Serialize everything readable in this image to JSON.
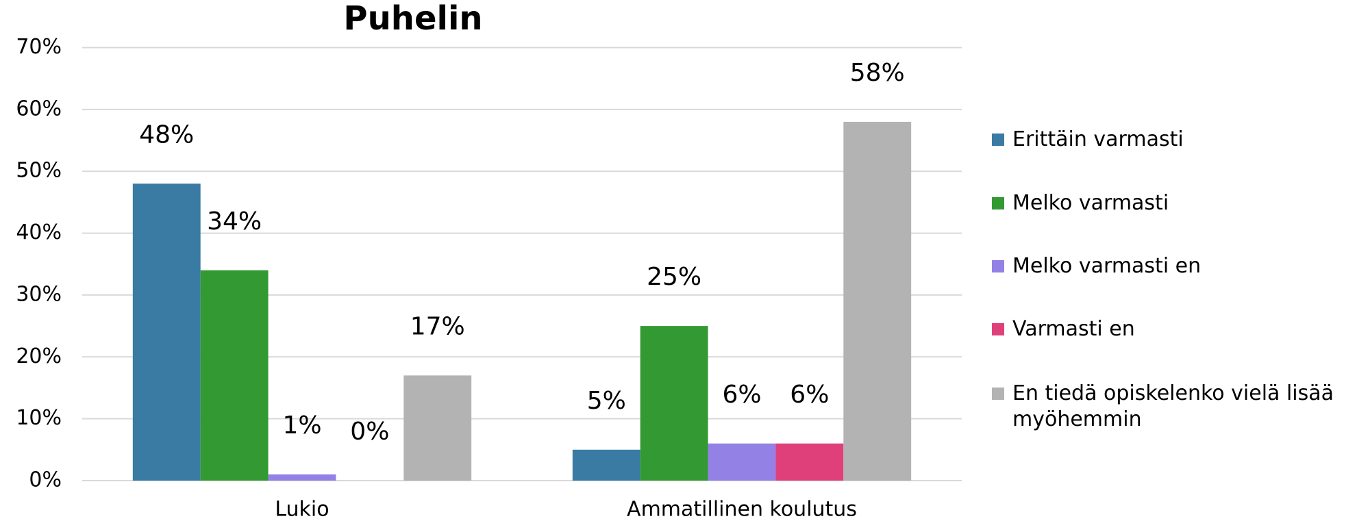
{
  "chart_data": {
    "type": "bar",
    "title": "Puhelin",
    "categories": [
      "Lukio",
      "Ammatillinen koulutus"
    ],
    "series": [
      {
        "name": "Erittäin varmasti",
        "color": "#3a7ba3",
        "values": [
          48,
          5
        ],
        "value_labels": [
          "48%",
          "5%"
        ]
      },
      {
        "name": "Melko varmasti",
        "color": "#339933",
        "values": [
          34,
          25
        ],
        "value_labels": [
          "34%",
          "25%"
        ]
      },
      {
        "name": "Melko varmasti en",
        "color": "#9381e6",
        "values": [
          1,
          6
        ],
        "value_labels": [
          "1%",
          "6%"
        ]
      },
      {
        "name": "Varmasti en",
        "color": "#e0407a",
        "values": [
          0,
          6
        ],
        "value_labels": [
          "0%",
          "6%"
        ]
      },
      {
        "name": "En tiedä opiskelenko vielä lisää myöhemmin",
        "color": "#b3b3b3",
        "values": [
          17,
          58
        ],
        "value_labels": [
          "17%",
          "58%"
        ]
      }
    ],
    "ylim": [
      0,
      70
    ],
    "yticks": [
      {
        "value": 0,
        "label": "0%"
      },
      {
        "value": 10,
        "label": "10%"
      },
      {
        "value": 20,
        "label": "20%"
      },
      {
        "value": 30,
        "label": "30%"
      },
      {
        "value": 40,
        "label": "40%"
      },
      {
        "value": 50,
        "label": "50%"
      },
      {
        "value": 60,
        "label": "60%"
      },
      {
        "value": 70,
        "label": "70%"
      }
    ],
    "grid": true,
    "legend": "right"
  }
}
